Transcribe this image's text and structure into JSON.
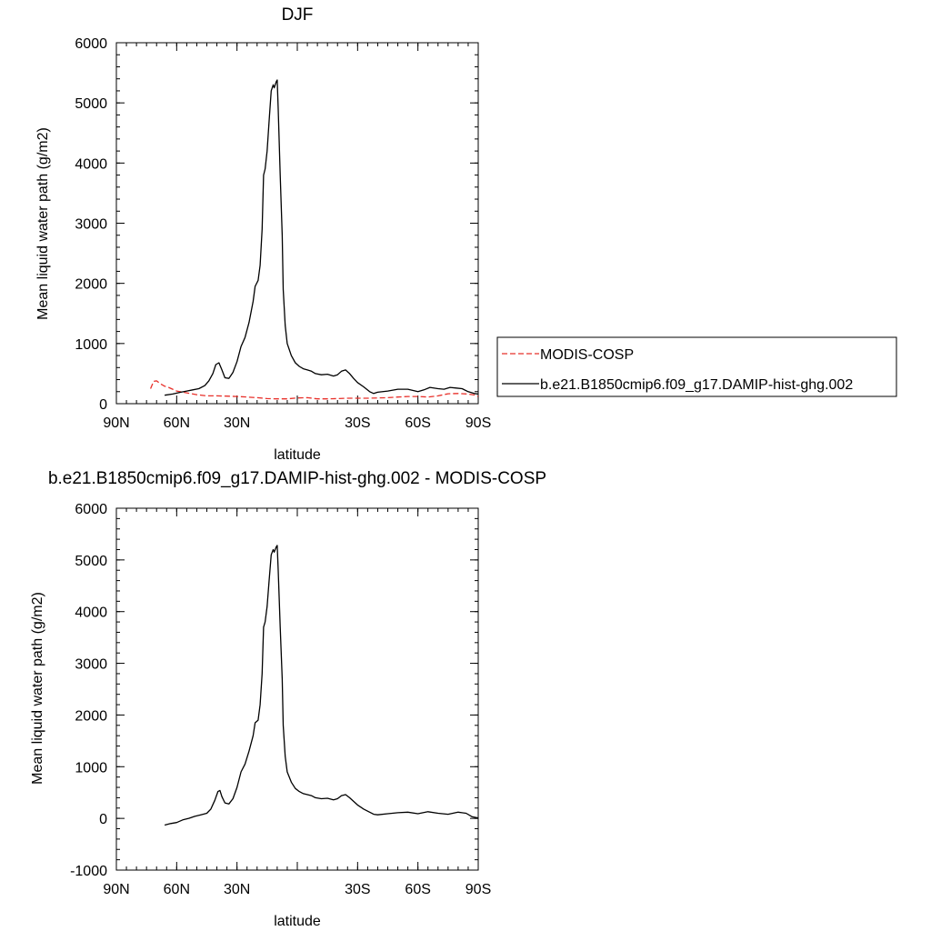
{
  "colors": {
    "model": "#000000",
    "obs": "#e8302a",
    "background": "#ffffff"
  },
  "legend": {
    "entries": [
      {
        "label": "MODIS-COSP",
        "style": "dashed",
        "color": "#e8302a"
      },
      {
        "label": "b.e21.B1850cmip6.f09_g17.DAMIP-hist-ghg.002",
        "style": "solid",
        "color": "#000000"
      }
    ]
  },
  "chart_data": [
    {
      "type": "line",
      "title": "DJF",
      "xlabel": "latitude",
      "ylabel": "Mean liquid water path (g/m2)",
      "xlim": [
        90,
        -90
      ],
      "ylim": [
        0,
        6000
      ],
      "xticks": [
        90,
        60,
        30,
        0,
        -30,
        -60,
        -90
      ],
      "xtick_labels": [
        "90N",
        "60N",
        "30N",
        "",
        "30S",
        "60S",
        "90S"
      ],
      "yticks": [
        0,
        1000,
        2000,
        3000,
        4000,
        5000,
        6000
      ],
      "ytick_labels": [
        "0",
        "1000",
        "2000",
        "3000",
        "4000",
        "5000",
        "6000"
      ],
      "series": [
        {
          "name": "MODIS-COSP",
          "style": "dashed",
          "color": "#e8302a",
          "x": [
            73,
            71.5,
            70,
            68,
            66,
            64,
            62,
            60,
            55,
            50,
            45,
            40,
            35,
            30,
            25,
            20,
            15,
            10,
            5,
            0,
            -5,
            -10,
            -15,
            -20,
            -25,
            -30,
            -35,
            -40,
            -45,
            -50,
            -55,
            -60,
            -65,
            -70,
            -75,
            -80,
            -85,
            -88,
            -90
          ],
          "values": [
            250,
            370,
            380,
            330,
            290,
            270,
            240,
            210,
            180,
            150,
            130,
            130,
            125,
            120,
            110,
            100,
            85,
            80,
            80,
            95,
            100,
            80,
            80,
            85,
            90,
            90,
            90,
            95,
            100,
            110,
            120,
            120,
            110,
            130,
            165,
            170,
            160,
            145,
            120
          ]
        },
        {
          "name": "b.e21.B1850cmip6.f09_g17.DAMIP-hist-ghg.002",
          "style": "solid",
          "color": "#000000",
          "x": [
            66,
            62,
            58,
            55,
            52,
            49,
            46,
            44,
            42,
            40.5,
            39,
            37.5,
            36,
            34,
            32,
            30,
            28,
            26,
            24,
            22,
            21,
            19.5,
            18.5,
            17.5,
            16.8,
            16,
            15,
            14,
            13,
            12,
            11.5,
            10.5,
            10,
            9.5,
            8.5,
            7.5,
            7,
            6,
            5,
            3,
            1,
            -1,
            -3,
            -5,
            -7,
            -9,
            -12,
            -15,
            -18,
            -20,
            -22,
            -24,
            -26,
            -28,
            -30,
            -33,
            -36,
            -38,
            -40,
            -45,
            -50,
            -55,
            -60,
            -63,
            -66,
            -70,
            -73,
            -76,
            -79,
            -82,
            -85,
            -88,
            -90
          ],
          "values": [
            140,
            160,
            190,
            210,
            230,
            250,
            300,
            380,
            500,
            650,
            680,
            560,
            430,
            420,
            520,
            700,
            950,
            1100,
            1350,
            1700,
            1950,
            2050,
            2300,
            2900,
            3800,
            3900,
            4200,
            4700,
            5200,
            5300,
            5250,
            5350,
            5380,
            4900,
            3800,
            2800,
            1900,
            1300,
            1000,
            800,
            680,
            620,
            580,
            560,
            540,
            500,
            480,
            490,
            460,
            480,
            540,
            560,
            500,
            420,
            350,
            280,
            200,
            170,
            190,
            210,
            240,
            240,
            200,
            230,
            270,
            250,
            240,
            270,
            260,
            250,
            200,
            170,
            160
          ]
        }
      ]
    },
    {
      "type": "line",
      "title": "b.e21.B1850cmip6.f09_g17.DAMIP-hist-ghg.002 - MODIS-COSP",
      "xlabel": "latitude",
      "ylabel": "Mean liquid water path (g/m2)",
      "xlim": [
        90,
        -90
      ],
      "ylim": [
        -1000,
        6000
      ],
      "xticks": [
        90,
        60,
        30,
        0,
        -30,
        -60,
        -90
      ],
      "xtick_labels": [
        "90N",
        "60N",
        "30N",
        "",
        "30S",
        "60S",
        "90S"
      ],
      "yticks": [
        -1000,
        0,
        1000,
        2000,
        3000,
        4000,
        5000,
        6000
      ],
      "ytick_labels": [
        "-1000",
        "0",
        "1000",
        "2000",
        "3000",
        "4000",
        "5000",
        "6000"
      ],
      "series": [
        {
          "name": "b.e21.B1850cmip6.f09_g17.DAMIP-hist-ghg.002 - MODIS-COSP",
          "style": "solid",
          "color": "#000000",
          "x": [
            66,
            63,
            60,
            57,
            54,
            51,
            48,
            45,
            43,
            41,
            39.5,
            38.5,
            37.5,
            36,
            34,
            32,
            30,
            28,
            26,
            24,
            22,
            21,
            19.5,
            18.5,
            17.5,
            16.8,
            16,
            15,
            14,
            13,
            12,
            11.5,
            10.5,
            10,
            9.5,
            8.5,
            7.5,
            7,
            6,
            5,
            3,
            1,
            -1,
            -3,
            -5,
            -7,
            -9,
            -12,
            -15,
            -18,
            -20,
            -22,
            -24,
            -26,
            -28,
            -30,
            -33,
            -36,
            -38,
            -40,
            -45,
            -50,
            -55,
            -60,
            -65,
            -70,
            -75,
            -80,
            -84,
            -87,
            -90
          ],
          "values": [
            -130,
            -100,
            -80,
            -30,
            0,
            40,
            70,
            100,
            180,
            350,
            520,
            540,
            420,
            300,
            280,
            380,
            600,
            900,
            1050,
            1300,
            1600,
            1850,
            1900,
            2200,
            2800,
            3700,
            3800,
            4100,
            4600,
            5100,
            5200,
            5150,
            5250,
            5280,
            4800,
            3700,
            2700,
            1800,
            1200,
            900,
            700,
            580,
            520,
            480,
            460,
            440,
            400,
            380,
            390,
            360,
            380,
            440,
            460,
            400,
            330,
            260,
            180,
            120,
            80,
            70,
            90,
            110,
            120,
            90,
            130,
            100,
            80,
            120,
            100,
            30,
            10
          ]
        }
      ]
    }
  ]
}
